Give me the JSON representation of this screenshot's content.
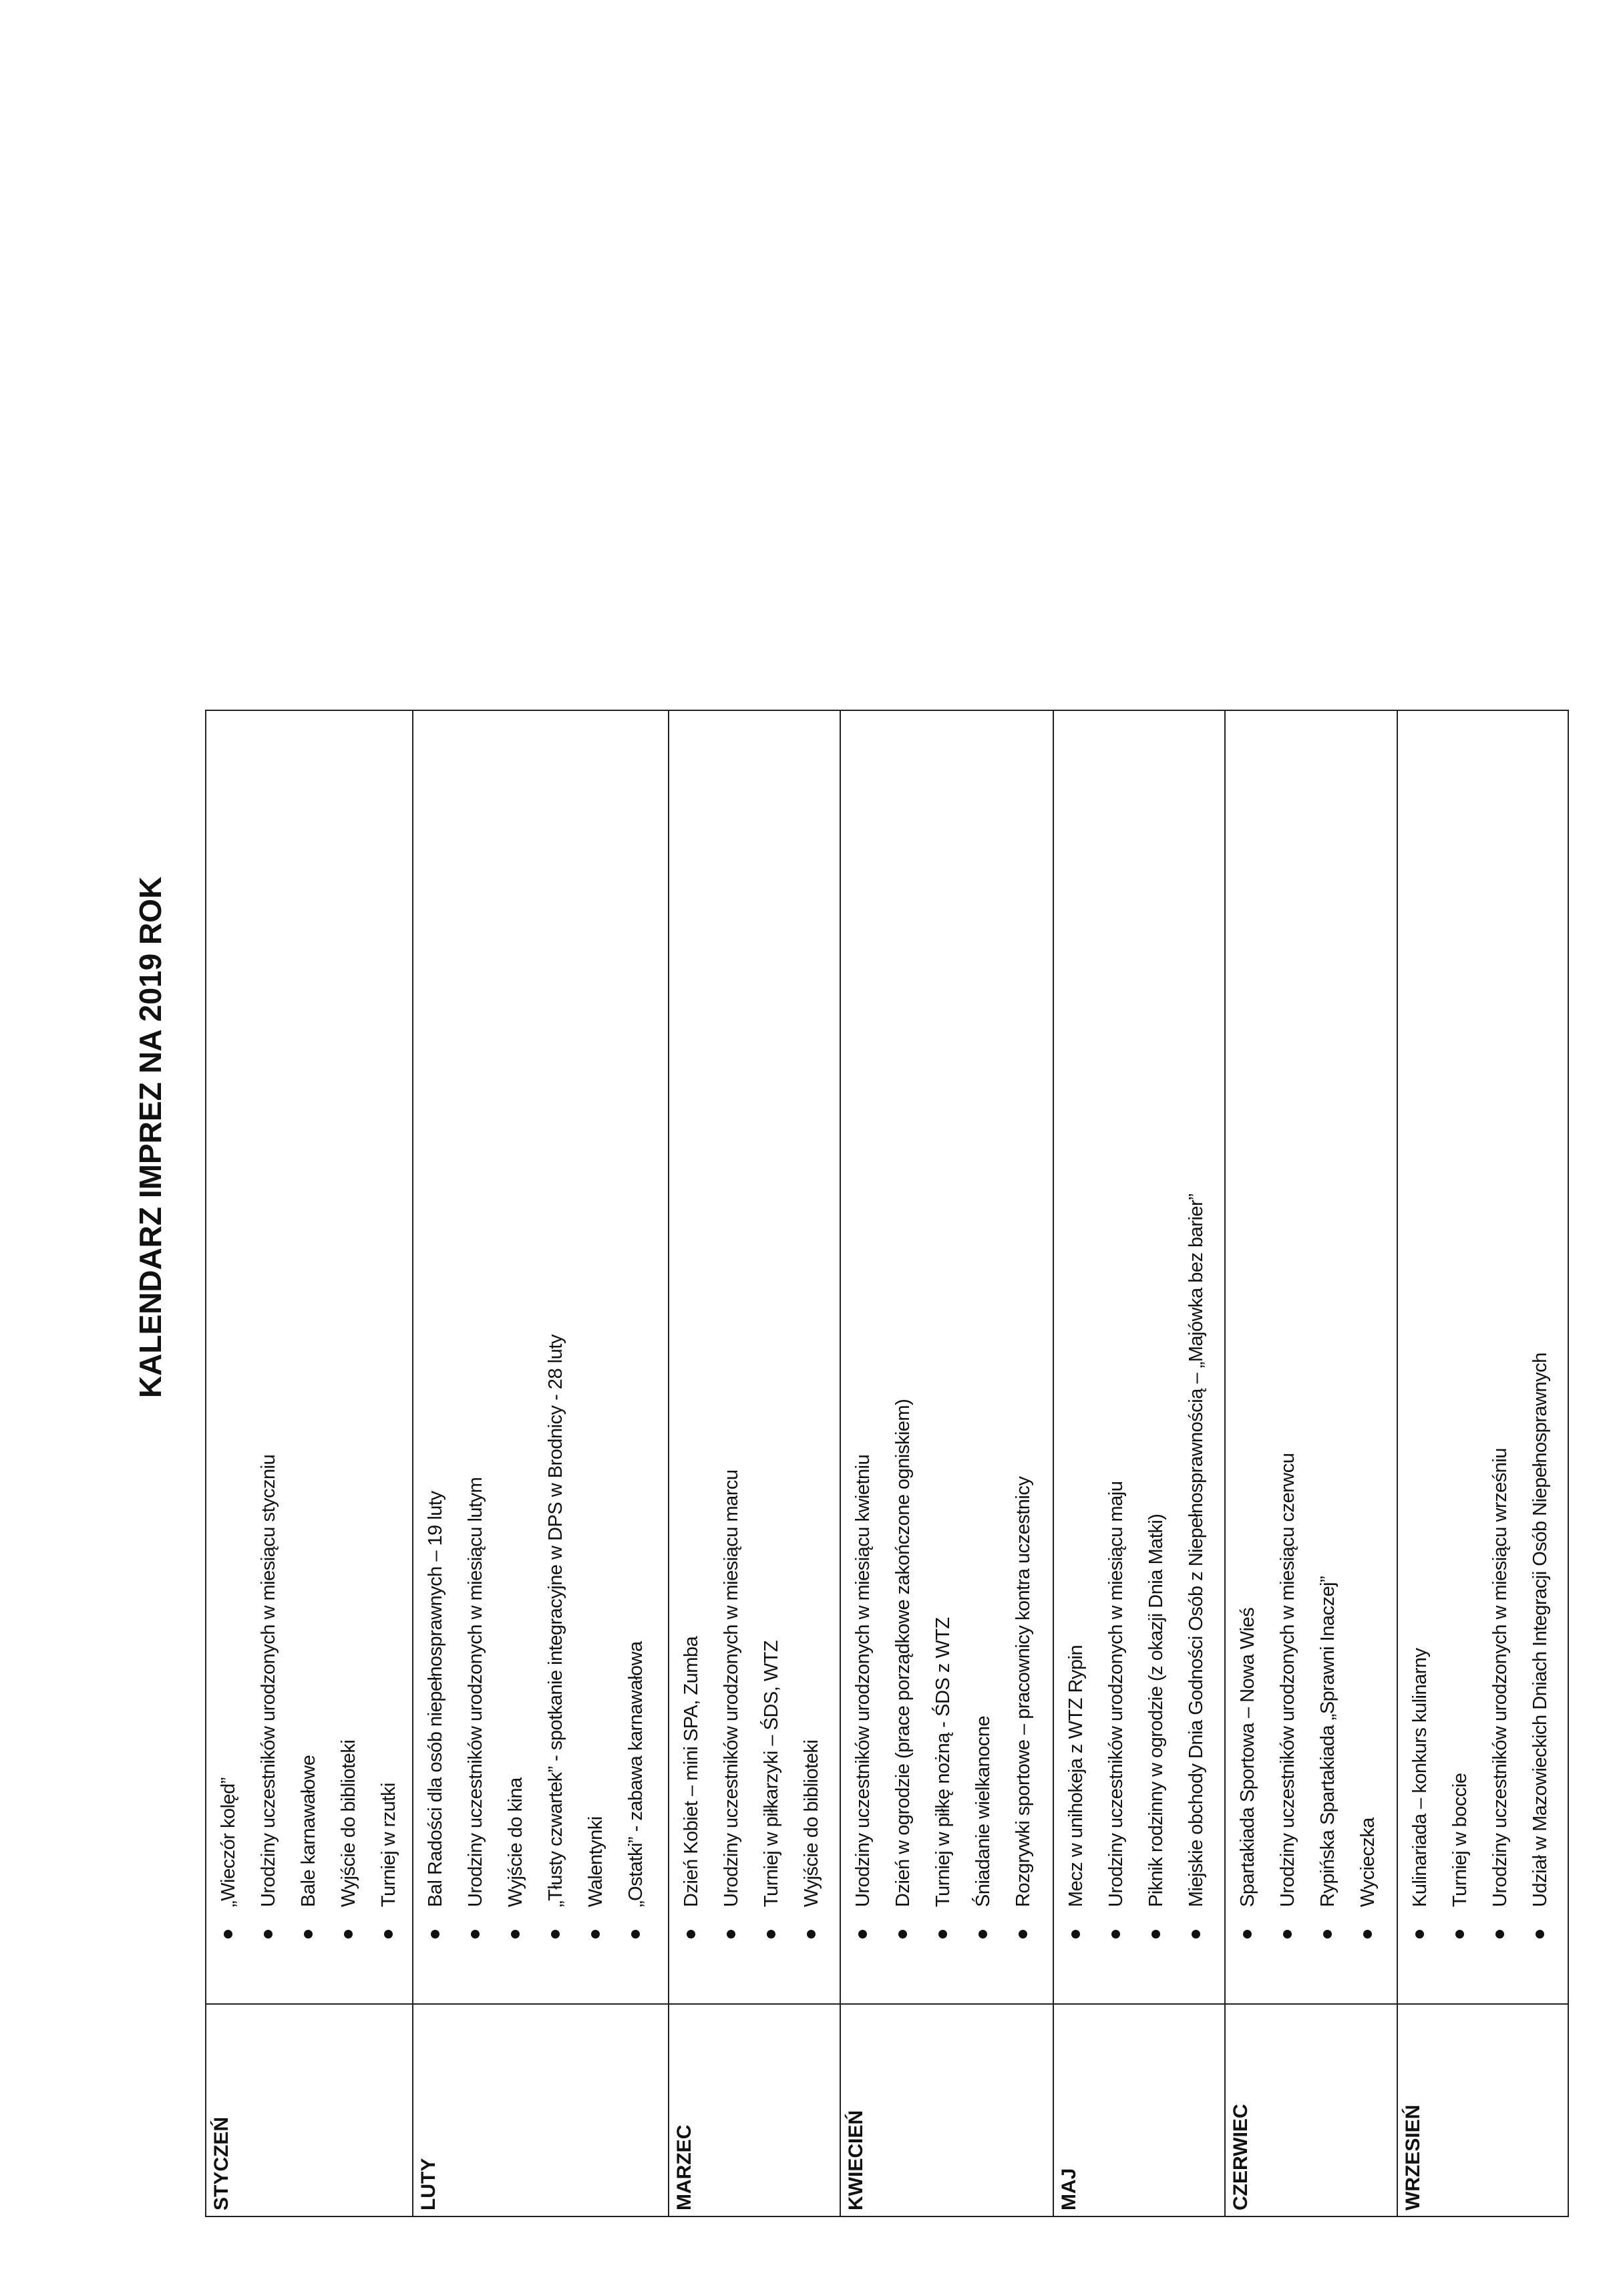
{
  "title": "KALENDARZ IMPREZ NA 2019 ROK",
  "months": [
    {
      "name": "STYCZEŃ",
      "items": [
        "„Wieczór kolęd”",
        "Urodziny uczestników urodzonych w miesiącu styczniu",
        "Bale karnawałowe",
        "Wyjście do biblioteki",
        "Turniej w rzutki"
      ]
    },
    {
      "name": "LUTY",
      "items": [
        "Bal Radości dla osób niepełnosprawnych – 19 luty",
        "Urodziny uczestników urodzonych w miesiącu lutym",
        "Wyjście do kina",
        "„Tłusty czwartek”   - spotkanie integracyjne w DPS w Brodnicy - 28 luty",
        "Walentynki",
        "„Ostatki”  - zabawa karnawałowa"
      ]
    },
    {
      "name": "MARZEC",
      "items": [
        "Dzień Kobiet – mini SPA, Zumba",
        "Urodziny uczestników urodzonych w miesiącu marcu",
        "Turniej w piłkarzyki – ŚDS, WTZ",
        "Wyjście do biblioteki"
      ]
    },
    {
      "name": "KWIECIEŃ",
      "items": [
        "Urodziny uczestników urodzonych w miesiącu kwietniu",
        "Dzień w ogrodzie (prace porządkowe zakończone ogniskiem)",
        "Turniej w piłkę nożną  - ŚDS z WTZ",
        "Śniadanie wielkanocne",
        "Rozgrywki sportowe – pracownicy kontra uczestnicy"
      ]
    },
    {
      "name": "MAJ",
      "items": [
        "Mecz w unihokeja z WTZ Rypin",
        "Urodziny uczestników urodzonych w miesiącu maju",
        "Piknik rodzinny w ogrodzie (z okazji Dnia Matki)",
        "Miejskie obchody Dnia Godności Osób z Niepełnosprawnością – „Majówka bez barier”"
      ]
    },
    {
      "name": "CZERWIEC",
      "items": [
        "Spartakiada Sportowa – Nowa Wieś",
        "Urodziny uczestników urodzonych w miesiącu czerwcu",
        "Rypińska Spartakiada „Sprawni Inaczej”",
        "Wycieczka"
      ]
    },
    {
      "name": "WRZESIEŃ",
      "items": [
        "Kulinariada – konkurs kulinarny",
        "Turniej w boccie",
        "Urodziny uczestników urodzonych w miesiącu wrześniu",
        "Udział w Mazowieckich Dniach Integracji Osób Niepełnosprawnych"
      ]
    }
  ]
}
